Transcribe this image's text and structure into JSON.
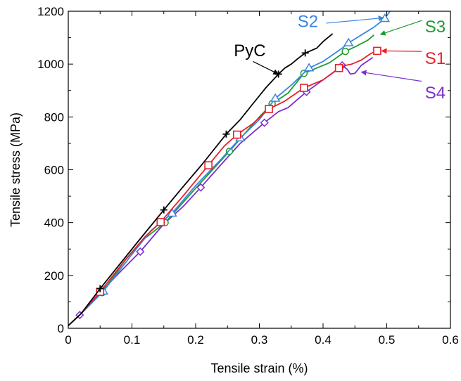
{
  "chart_data": {
    "type": "line",
    "xlabel": "Tensile strain (%)",
    "ylabel": "Tensile stress (MPa)",
    "xlim": [
      0,
      0.6
    ],
    "ylim": [
      0,
      1200
    ],
    "xticks": [
      "0",
      "0.1",
      "0.2",
      "0.3",
      "0.4",
      "0.5",
      "0.6"
    ],
    "yticks": [
      "0",
      "200",
      "400",
      "600",
      "800",
      "1000",
      "1200"
    ],
    "grid": false,
    "series": [
      {
        "name": "PyC",
        "color": "#000000",
        "marker": "plus",
        "points": [
          [
            0,
            10
          ],
          [
            0.02,
            55
          ],
          [
            0.05,
            150
          ],
          [
            0.08,
            240
          ],
          [
            0.11,
            330
          ],
          [
            0.15,
            448
          ],
          [
            0.18,
            535
          ],
          [
            0.21,
            620
          ],
          [
            0.248,
            735
          ],
          [
            0.27,
            790
          ],
          [
            0.29,
            850
          ],
          [
            0.31,
            910
          ],
          [
            0.33,
            962
          ],
          [
            0.34,
            985
          ],
          [
            0.35,
            1000
          ],
          [
            0.36,
            1020
          ],
          [
            0.372,
            1042
          ],
          [
            0.38,
            1050
          ],
          [
            0.39,
            1060
          ],
          [
            0.4,
            1085
          ],
          [
            0.415,
            1115
          ]
        ],
        "markers": [
          [
            0.05,
            150
          ],
          [
            0.15,
            448
          ],
          [
            0.248,
            735
          ],
          [
            0.33,
            962
          ],
          [
            0.372,
            1042
          ]
        ]
      },
      {
        "name": "S1",
        "color": "#e8202a",
        "marker": "square",
        "points": [
          [
            0,
            10
          ],
          [
            0.02,
            55
          ],
          [
            0.05,
            138
          ],
          [
            0.09,
            260
          ],
          [
            0.12,
            345
          ],
          [
            0.145,
            402
          ],
          [
            0.18,
            500
          ],
          [
            0.22,
            617
          ],
          [
            0.245,
            690
          ],
          [
            0.265,
            733
          ],
          [
            0.29,
            775
          ],
          [
            0.315,
            830
          ],
          [
            0.34,
            860
          ],
          [
            0.37,
            910
          ],
          [
            0.4,
            940
          ],
          [
            0.425,
            985
          ],
          [
            0.435,
            995
          ],
          [
            0.445,
            1000
          ],
          [
            0.46,
            1015
          ],
          [
            0.475,
            1040
          ],
          [
            0.485,
            1050
          ]
        ],
        "markers": [
          [
            0.05,
            138
          ],
          [
            0.145,
            402
          ],
          [
            0.22,
            617
          ],
          [
            0.265,
            733
          ],
          [
            0.315,
            830
          ],
          [
            0.37,
            910
          ],
          [
            0.425,
            985
          ],
          [
            0.485,
            1050
          ]
        ]
      },
      {
        "name": "S2",
        "color": "#3a86e0",
        "marker": "triangle",
        "points": [
          [
            0,
            10
          ],
          [
            0.02,
            55
          ],
          [
            0.055,
            140
          ],
          [
            0.1,
            280
          ],
          [
            0.13,
            370
          ],
          [
            0.163,
            435
          ],
          [
            0.2,
            540
          ],
          [
            0.24,
            640
          ],
          [
            0.27,
            720
          ],
          [
            0.3,
            790
          ],
          [
            0.325,
            870
          ],
          [
            0.35,
            920
          ],
          [
            0.378,
            985
          ],
          [
            0.4,
            1010
          ],
          [
            0.43,
            1060
          ],
          [
            0.44,
            1080
          ],
          [
            0.46,
            1110
          ],
          [
            0.48,
            1140
          ],
          [
            0.497,
            1172
          ],
          [
            0.505,
            1200
          ]
        ],
        "markers": [
          [
            0.055,
            140
          ],
          [
            0.163,
            435
          ],
          [
            0.27,
            720
          ],
          [
            0.325,
            870
          ],
          [
            0.378,
            985
          ],
          [
            0.44,
            1080
          ],
          [
            0.497,
            1172
          ]
        ]
      },
      {
        "name": "S3",
        "color": "#1e9a2e",
        "marker": "circle",
        "points": [
          [
            0,
            10
          ],
          [
            0.02,
            55
          ],
          [
            0.053,
            135
          ],
          [
            0.09,
            260
          ],
          [
            0.12,
            340
          ],
          [
            0.152,
            400
          ],
          [
            0.2,
            530
          ],
          [
            0.253,
            670
          ],
          [
            0.28,
            745
          ],
          [
            0.3,
            800
          ],
          [
            0.32,
            850
          ],
          [
            0.345,
            890
          ],
          [
            0.37,
            965
          ],
          [
            0.39,
            985
          ],
          [
            0.41,
            1005
          ],
          [
            0.435,
            1048
          ],
          [
            0.45,
            1065
          ],
          [
            0.47,
            1090
          ],
          [
            0.48,
            1110
          ]
        ],
        "markers": [
          [
            0.053,
            135
          ],
          [
            0.152,
            400
          ],
          [
            0.253,
            670
          ],
          [
            0.32,
            850
          ],
          [
            0.37,
            965
          ],
          [
            0.435,
            1048
          ]
        ]
      },
      {
        "name": "S4",
        "color": "#7b2fd0",
        "marker": "diamond",
        "points": [
          [
            0,
            10
          ],
          [
            0.018,
            50
          ],
          [
            0.05,
            135
          ],
          [
            0.08,
            210
          ],
          [
            0.113,
            290
          ],
          [
            0.15,
            395
          ],
          [
            0.18,
            460
          ],
          [
            0.208,
            533
          ],
          [
            0.24,
            620
          ],
          [
            0.27,
            700
          ],
          [
            0.308,
            778
          ],
          [
            0.33,
            820
          ],
          [
            0.345,
            835
          ],
          [
            0.374,
            895
          ],
          [
            0.4,
            940
          ],
          [
            0.42,
            975
          ],
          [
            0.43,
            995
          ],
          [
            0.438,
            980
          ],
          [
            0.443,
            962
          ],
          [
            0.45,
            965
          ],
          [
            0.46,
            995
          ],
          [
            0.478,
            1025
          ]
        ],
        "markers": [
          [
            0.018,
            50
          ],
          [
            0.113,
            290
          ],
          [
            0.208,
            533
          ],
          [
            0.308,
            778
          ],
          [
            0.374,
            895
          ],
          [
            0.43,
            995
          ]
        ]
      }
    ],
    "annotations": [
      {
        "text": "PyC",
        "color": "#000000",
        "label_at": [
          0.26,
          1030
        ],
        "arrow_from": [
          0.29,
          1010
        ],
        "arrow_to": [
          0.33,
          962
        ]
      },
      {
        "text": "S2",
        "color": "#3a86e0",
        "label_at": [
          0.36,
          1140
        ],
        "arrow_from": [
          0.405,
          1155
        ],
        "arrow_to": [
          0.495,
          1175
        ]
      },
      {
        "text": "S3",
        "color": "#1e9a2e",
        "label_at": [
          0.56,
          1120
        ],
        "arrow_from": [
          0.555,
          1165
        ],
        "arrow_to": [
          0.49,
          1112
        ]
      },
      {
        "text": "S1",
        "color": "#e8202a",
        "label_at": [
          0.56,
          1000
        ],
        "arrow_from": [
          0.555,
          1048
        ],
        "arrow_to": [
          0.492,
          1050
        ]
      },
      {
        "text": "S4",
        "color": "#7b2fd0",
        "label_at": [
          0.56,
          870
        ],
        "arrow_from": [
          0.555,
          935
        ],
        "arrow_to": [
          0.46,
          970
        ]
      }
    ]
  }
}
